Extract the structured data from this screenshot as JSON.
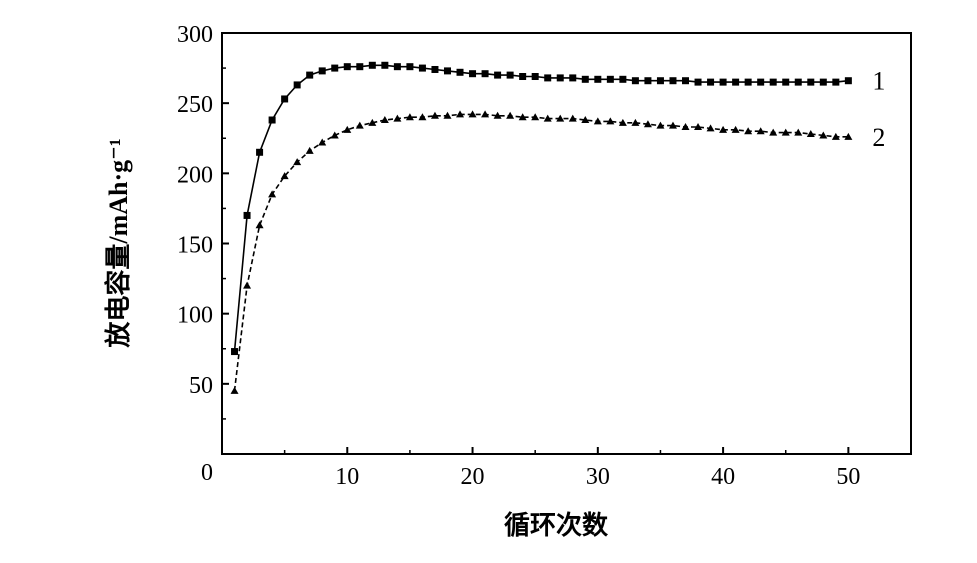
{
  "chart_data": {
    "type": "line",
    "xlabel": "循环次数",
    "ylabel": "放电容量/mAh·g⁻¹",
    "xlim": [
      0,
      55
    ],
    "ylim": [
      0,
      300
    ],
    "x_ticks": [
      10,
      20,
      30,
      40,
      50
    ],
    "y_ticks": [
      50,
      100,
      150,
      200,
      250,
      300
    ],
    "origin_label": "0",
    "grid": false,
    "legend": "inline labels at right end of each series",
    "series": [
      {
        "name": "1",
        "color": "#000000",
        "marker": "square",
        "x": [
          1,
          2,
          3,
          4,
          5,
          6,
          7,
          8,
          9,
          10,
          11,
          12,
          13,
          14,
          15,
          16,
          17,
          18,
          19,
          20,
          21,
          22,
          23,
          24,
          25,
          26,
          27,
          28,
          29,
          30,
          31,
          32,
          33,
          34,
          35,
          36,
          37,
          38,
          39,
          40,
          41,
          42,
          43,
          44,
          45,
          46,
          47,
          48,
          49,
          50
        ],
        "values": [
          73,
          170,
          215,
          238,
          253,
          263,
          270,
          273,
          275,
          276,
          276,
          277,
          277,
          276,
          276,
          275,
          274,
          273,
          272,
          271,
          271,
          270,
          270,
          269,
          269,
          268,
          268,
          268,
          267,
          267,
          267,
          267,
          266,
          266,
          266,
          266,
          266,
          265,
          265,
          265,
          265,
          265,
          265,
          265,
          265,
          265,
          265,
          265,
          265,
          266
        ]
      },
      {
        "name": "2",
        "color": "#000000",
        "marker": "triangle",
        "x": [
          1,
          2,
          3,
          4,
          5,
          6,
          7,
          8,
          9,
          10,
          11,
          12,
          13,
          14,
          15,
          16,
          17,
          18,
          19,
          20,
          21,
          22,
          23,
          24,
          25,
          26,
          27,
          28,
          29,
          30,
          31,
          32,
          33,
          34,
          35,
          36,
          37,
          38,
          39,
          40,
          41,
          42,
          43,
          44,
          45,
          46,
          47,
          48,
          49,
          50
        ],
        "values": [
          45,
          120,
          163,
          185,
          198,
          208,
          216,
          222,
          227,
          231,
          234,
          236,
          238,
          239,
          240,
          240,
          241,
          241,
          242,
          242,
          242,
          241,
          241,
          240,
          240,
          239,
          239,
          239,
          238,
          237,
          237,
          236,
          236,
          235,
          234,
          234,
          233,
          233,
          232,
          231,
          231,
          230,
          230,
          229,
          229,
          229,
          228,
          227,
          226,
          226
        ]
      }
    ]
  }
}
